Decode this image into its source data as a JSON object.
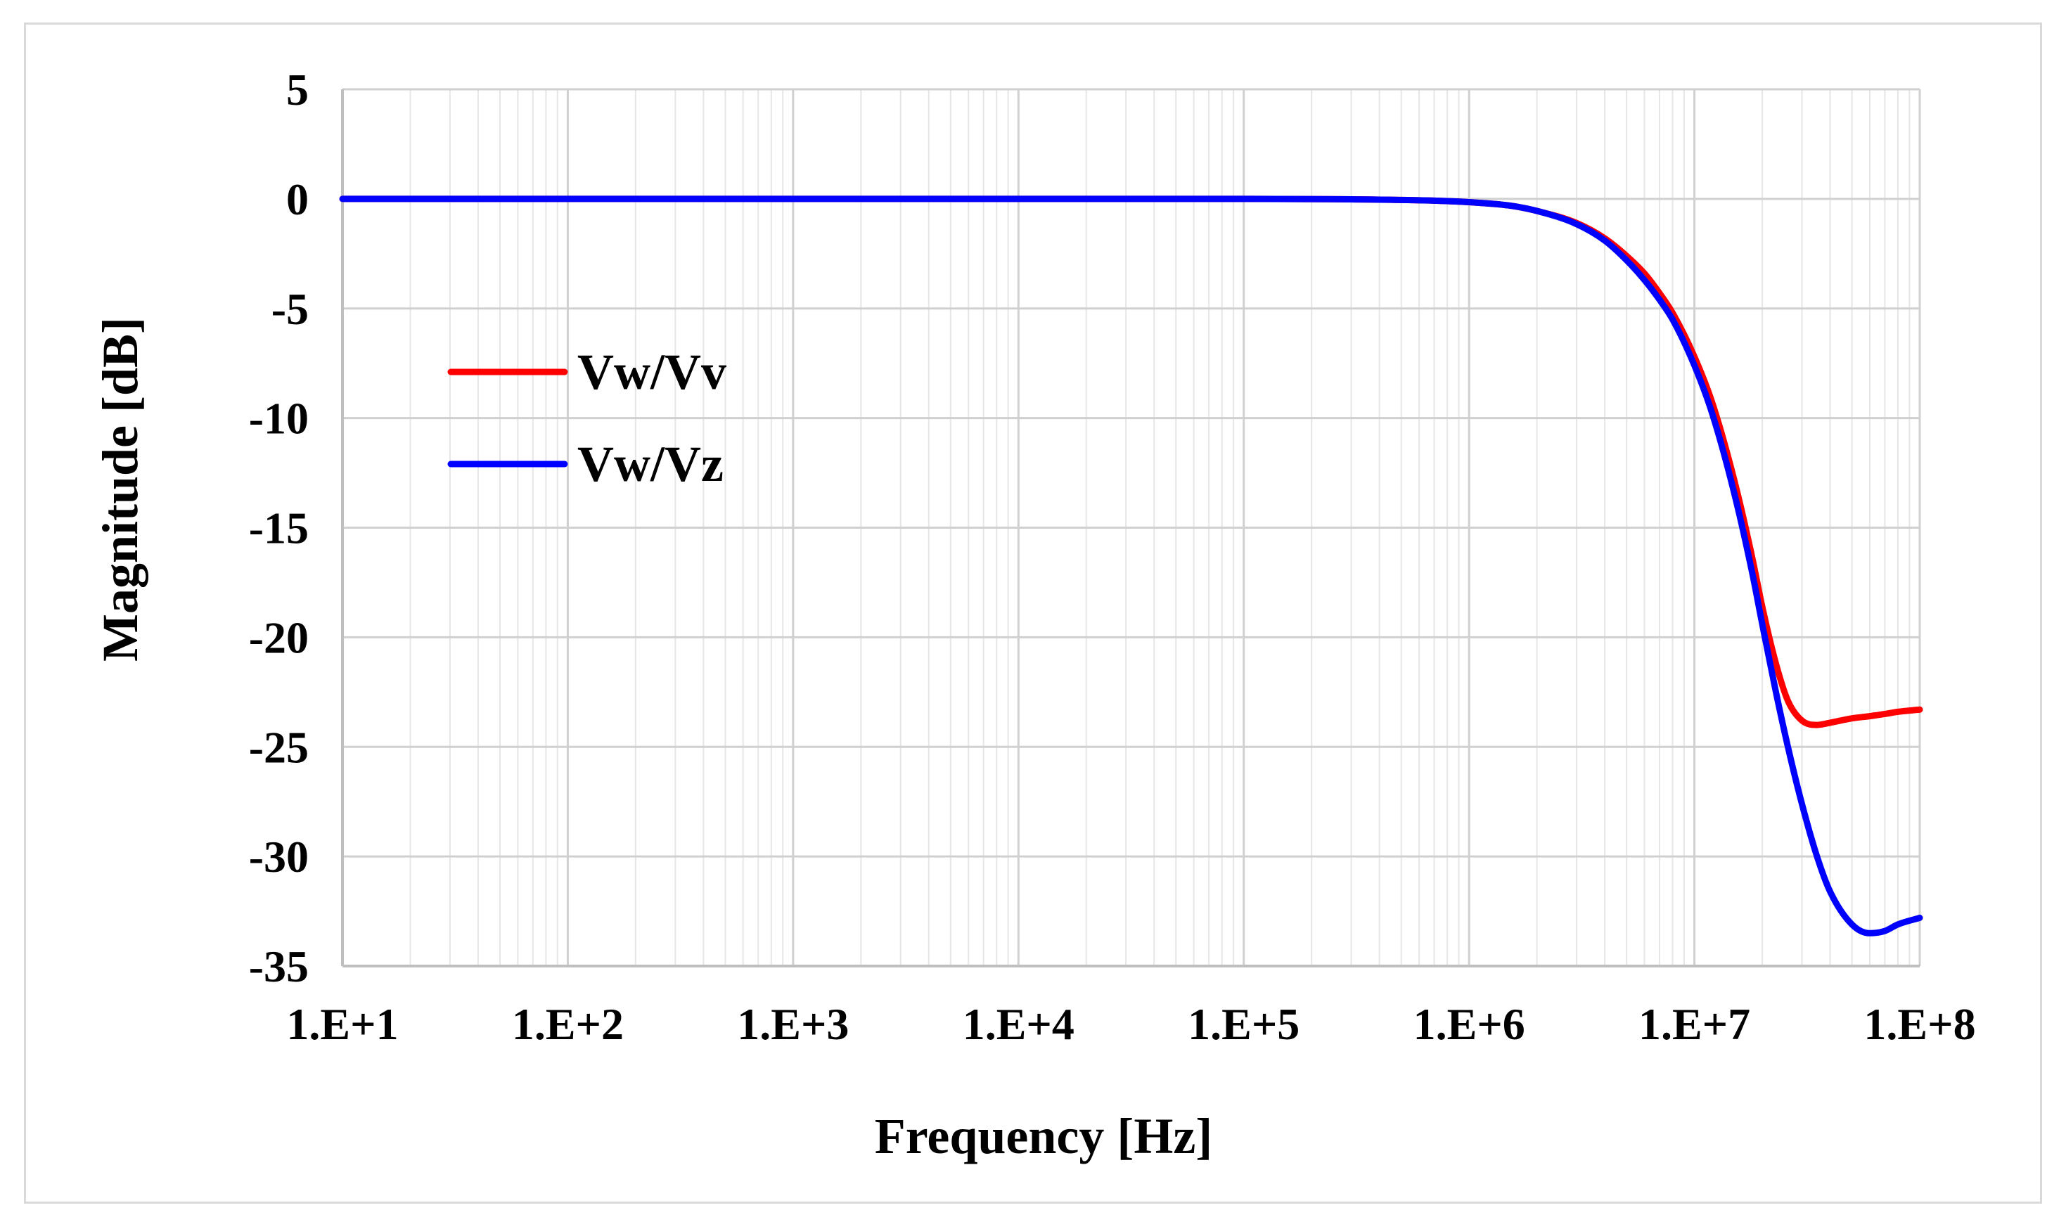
{
  "chart_data": {
    "type": "line",
    "title": "",
    "xlabel": "Frequency [Hz]",
    "ylabel": "Magnitude [dB]",
    "xscale": "log",
    "xlim": [
      10,
      100000000
    ],
    "ylim": [
      -35,
      5
    ],
    "grid": true,
    "legend_position": "left-middle",
    "x_tick_labels": [
      "1.E+1",
      "1.E+2",
      "1.E+3",
      "1.E+4",
      "1.E+5",
      "1.E+6",
      "1.E+7",
      "1.E+8"
    ],
    "x_tick_values": [
      10,
      100,
      1000,
      10000,
      100000,
      1000000,
      10000000,
      100000000
    ],
    "y_tick_labels": [
      "5",
      "0",
      "-5",
      "-10",
      "-15",
      "-20",
      "-25",
      "-30",
      "-35"
    ],
    "y_tick_values": [
      5,
      0,
      -5,
      -10,
      -15,
      -20,
      -25,
      -30,
      -35
    ],
    "series": [
      {
        "name": "Vw/Vv",
        "color": "#ff0000",
        "x": [
          10,
          100,
          1000,
          10000,
          100000,
          300000,
          700000,
          1000000,
          1500000,
          2000000,
          3000000,
          4000000,
          5000000,
          6000000,
          7000000,
          8000000,
          10000000,
          12000000,
          15000000,
          18000000,
          20000000,
          23000000,
          26000000,
          30000000,
          35000000,
          40000000,
          50000000,
          60000000,
          70000000,
          80000000,
          100000000
        ],
        "values": [
          0,
          0,
          0,
          0,
          0,
          -0.02,
          -0.08,
          -0.15,
          -0.3,
          -0.55,
          -1.1,
          -1.8,
          -2.6,
          -3.4,
          -4.3,
          -5.2,
          -7.2,
          -9.3,
          -12.8,
          -16.3,
          -18.6,
          -21.2,
          -22.9,
          -23.8,
          -24.0,
          -23.9,
          -23.7,
          -23.6,
          -23.5,
          -23.4,
          -23.3
        ]
      },
      {
        "name": "Vw/Vz",
        "color": "#0000ff",
        "x": [
          10,
          100,
          1000,
          10000,
          100000,
          300000,
          700000,
          1000000,
          1500000,
          2000000,
          3000000,
          4000000,
          5000000,
          6000000,
          7000000,
          8000000,
          10000000,
          12000000,
          15000000,
          18000000,
          20000000,
          23000000,
          26000000,
          30000000,
          35000000,
          40000000,
          50000000,
          60000000,
          70000000,
          80000000,
          100000000
        ],
        "values": [
          0,
          0,
          0,
          0,
          0,
          -0.02,
          -0.08,
          -0.15,
          -0.3,
          -0.55,
          -1.15,
          -1.9,
          -2.8,
          -3.7,
          -4.6,
          -5.5,
          -7.6,
          -9.8,
          -13.4,
          -17.0,
          -19.4,
          -22.5,
          -25.0,
          -27.6,
          -30.0,
          -31.6,
          -33.1,
          -33.5,
          -33.4,
          -33.1,
          -32.8
        ]
      }
    ]
  }
}
